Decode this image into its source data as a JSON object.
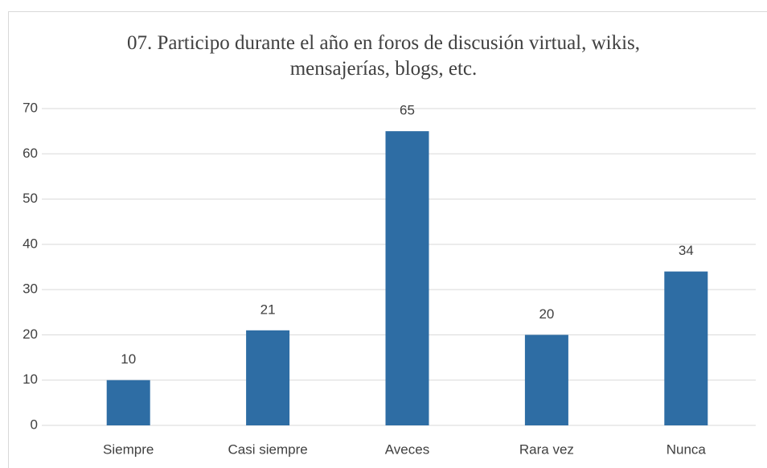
{
  "chart_data": {
    "type": "bar",
    "title": "07. Participo durante el año en foros de discusión virtual, wikis, mensajerías, blogs, etc.",
    "categories": [
      "Siempre",
      "Casi siempre",
      "Aveces",
      "Rara vez",
      "Nunca"
    ],
    "values": [
      10,
      21,
      65,
      20,
      34
    ],
    "color": "#2e6da4",
    "ylim": [
      0,
      70
    ],
    "yticks": [
      0,
      10,
      20,
      30,
      40,
      50,
      60,
      70
    ],
    "grid": true,
    "data_labels": true
  }
}
